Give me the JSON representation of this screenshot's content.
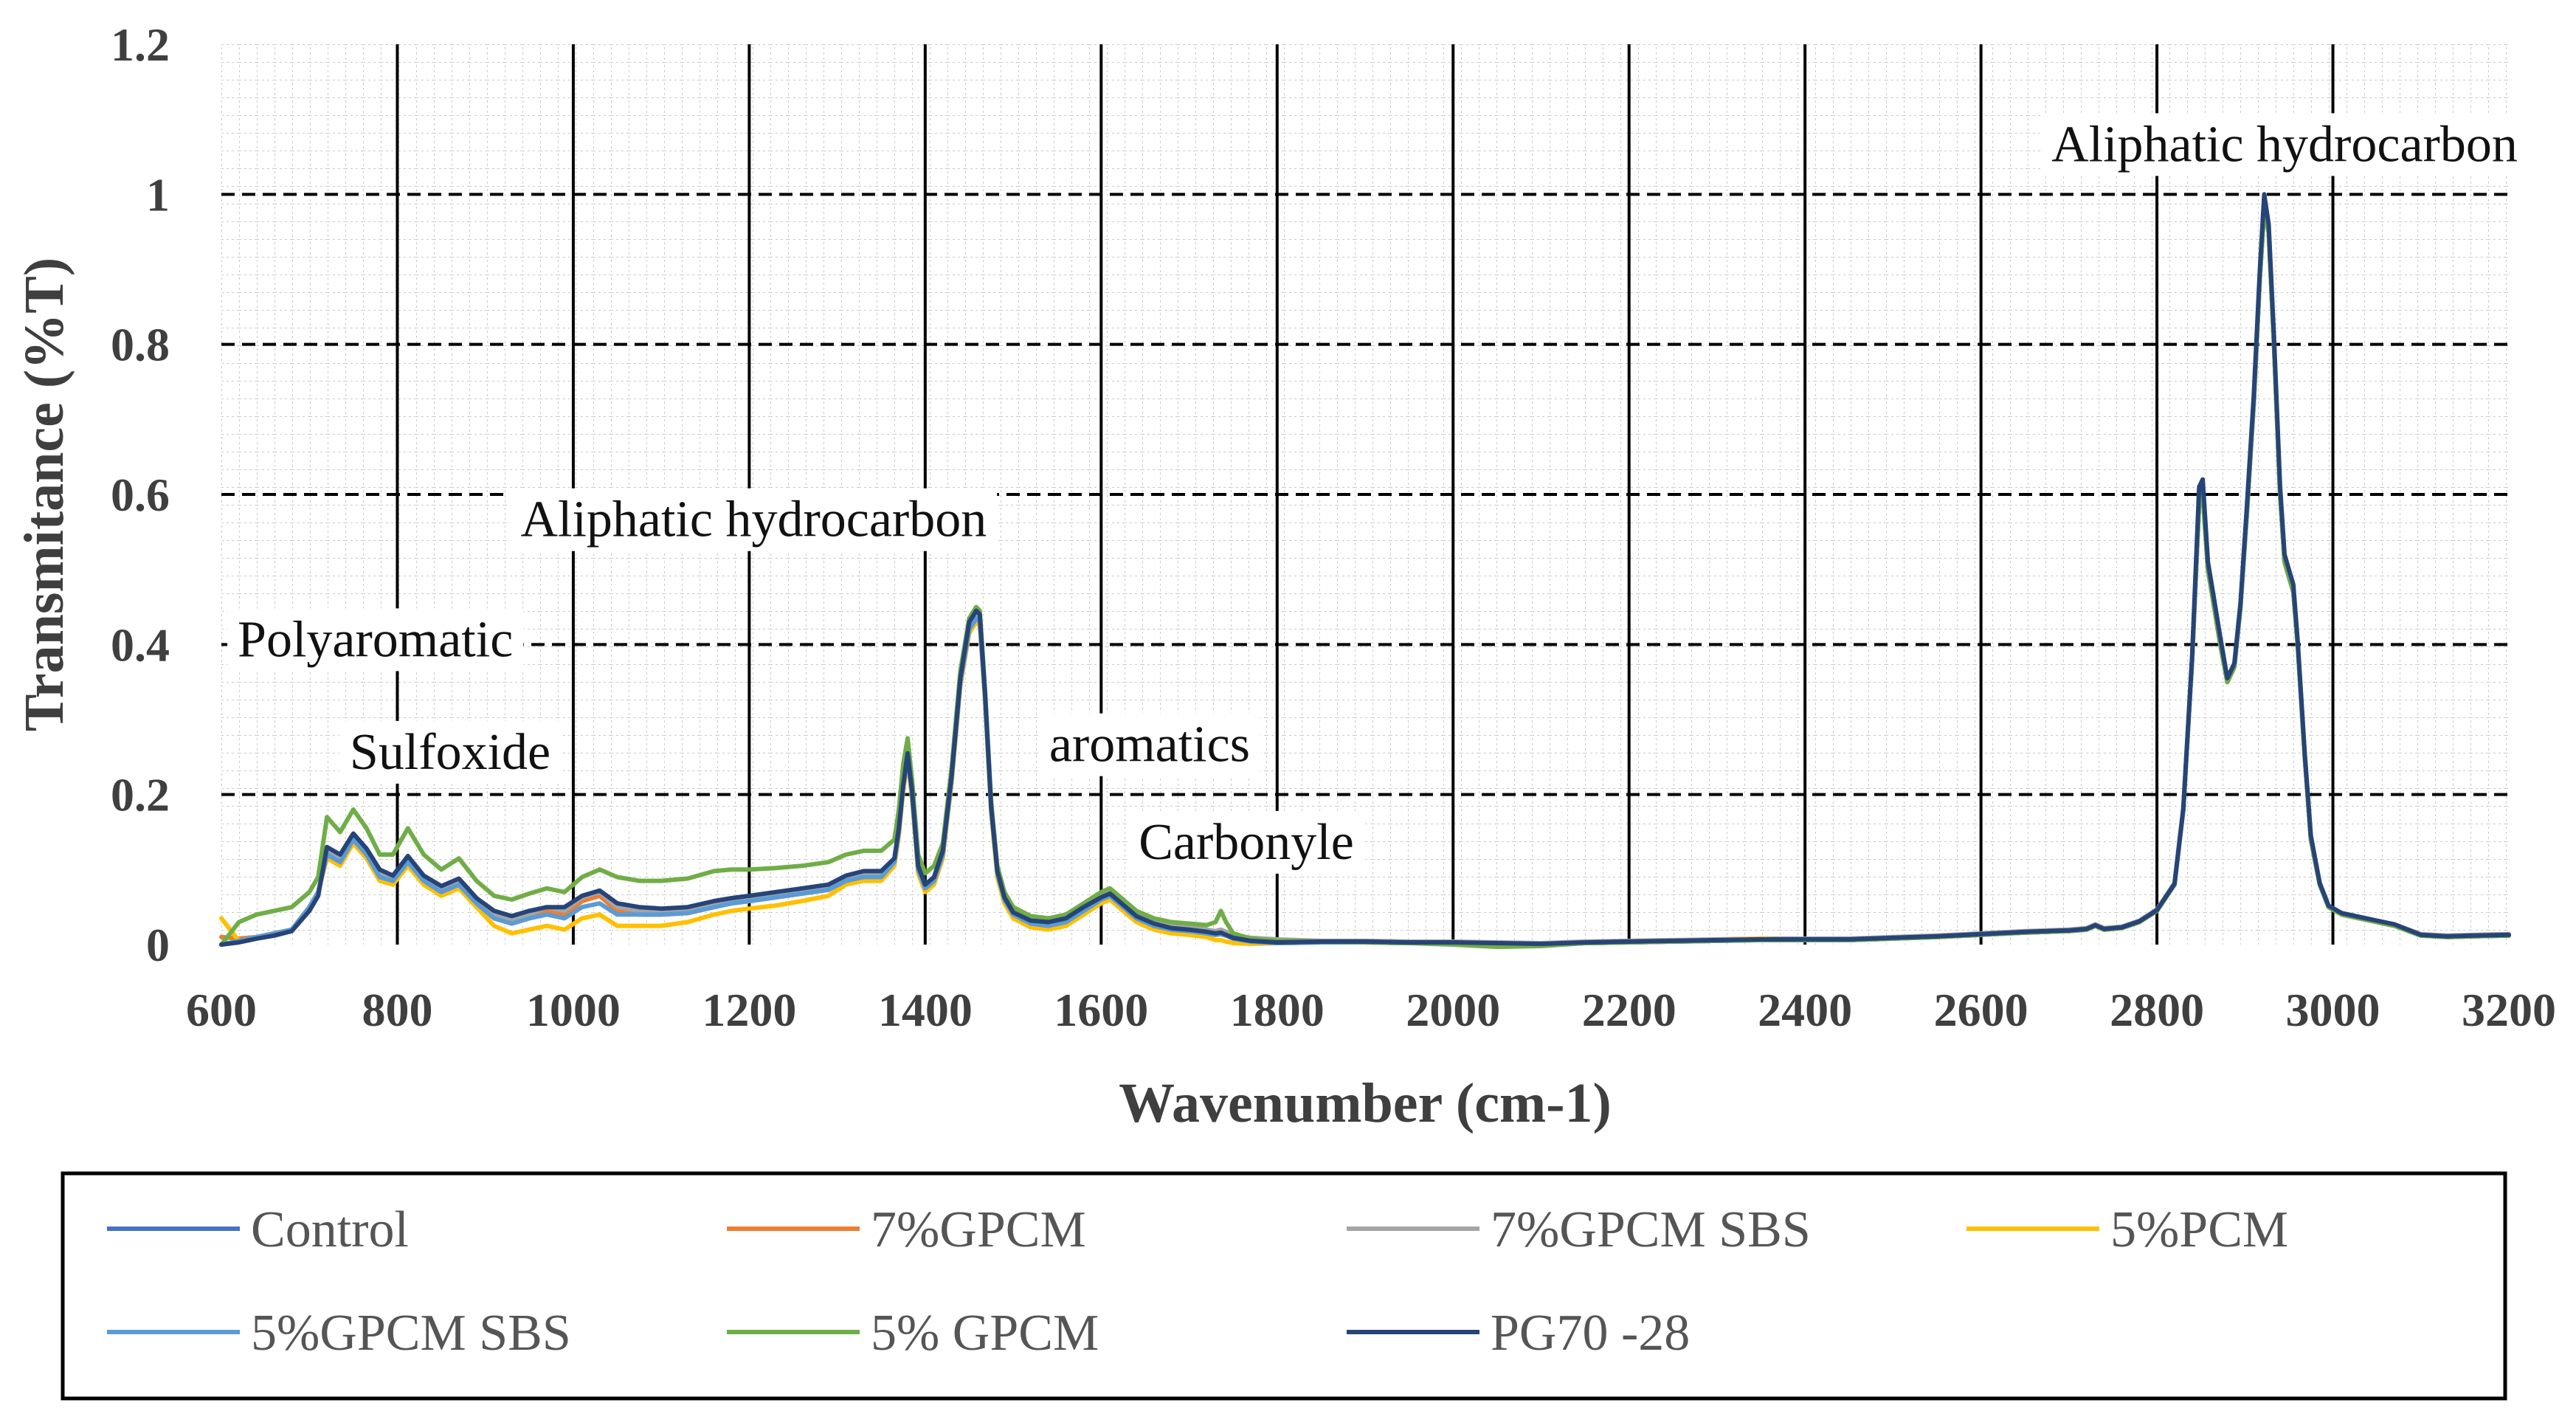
{
  "chart_data": {
    "type": "line",
    "title": "",
    "xlabel": "Wavenumber (cm-1)",
    "ylabel": "Transmitance (%T)",
    "xlim": [
      600,
      3200
    ],
    "ylim": [
      0,
      1.2
    ],
    "x_ticks": [
      600,
      800,
      1000,
      1200,
      1400,
      1600,
      1800,
      2000,
      2200,
      2400,
      2600,
      2800,
      3000,
      3200
    ],
    "y_ticks": [
      0,
      0.2,
      0.4,
      0.6,
      0.8,
      1,
      1.2
    ],
    "y_tick_labels": [
      "0",
      "0.2",
      "0.4",
      "0.6",
      "0.8",
      "1",
      "1.2"
    ],
    "grid": true,
    "legend_position": "bottom",
    "annotations": [
      {
        "text": "Polyaromatic",
        "x": 775,
        "y": 0.4
      },
      {
        "text": "Sulfoxide",
        "x": 860,
        "y": 0.25
      },
      {
        "text": "Aliphatic hydrocarbon",
        "x": 1205,
        "y": 0.56
      },
      {
        "text": "aromatics",
        "x": 1655,
        "y": 0.26
      },
      {
        "text": "Carbonyle",
        "x": 1765,
        "y": 0.13
      },
      {
        "text": "Aliphatic hydrocarbon",
        "x": 2945,
        "y": 1.06
      }
    ],
    "x": [
      600,
      620,
      640,
      660,
      680,
      700,
      710,
      720,
      735,
      750,
      765,
      780,
      795,
      812,
      830,
      850,
      870,
      890,
      910,
      930,
      950,
      970,
      990,
      1010,
      1030,
      1050,
      1075,
      1100,
      1130,
      1160,
      1180,
      1200,
      1230,
      1260,
      1290,
      1310,
      1330,
      1350,
      1365,
      1370,
      1375,
      1380,
      1385,
      1392,
      1400,
      1410,
      1420,
      1430,
      1440,
      1450,
      1458,
      1462,
      1468,
      1475,
      1482,
      1490,
      1500,
      1520,
      1540,
      1560,
      1580,
      1600,
      1610,
      1620,
      1640,
      1660,
      1680,
      1700,
      1720,
      1730,
      1736,
      1742,
      1750,
      1770,
      1800,
      1850,
      1900,
      1950,
      2000,
      2050,
      2100,
      2150,
      2200,
      2250,
      2300,
      2350,
      2400,
      2450,
      2500,
      2550,
      2600,
      2650,
      2700,
      2720,
      2730,
      2740,
      2760,
      2780,
      2800,
      2820,
      2830,
      2840,
      2848,
      2852,
      2858,
      2865,
      2872,
      2880,
      2888,
      2895,
      2902,
      2910,
      2917,
      2922,
      2927,
      2933,
      2940,
      2945,
      2950,
      2955,
      2960,
      2968,
      2975,
      2985,
      2995,
      3010,
      3030,
      3050,
      3070,
      3100,
      3130,
      3160,
      3200
    ],
    "series": [
      {
        "name": "Control",
        "color": "#4472C4",
        "values": [
          0.0,
          0.005,
          0.01,
          0.015,
          0.02,
          0.05,
          0.07,
          0.12,
          0.11,
          0.14,
          0.12,
          0.09,
          0.085,
          0.11,
          0.085,
          0.07,
          0.08,
          0.055,
          0.035,
          0.028,
          0.035,
          0.045,
          0.04,
          0.058,
          0.065,
          0.045,
          0.04,
          0.04,
          0.042,
          0.05,
          0.055,
          0.058,
          0.063,
          0.068,
          0.073,
          0.085,
          0.09,
          0.09,
          0.11,
          0.15,
          0.21,
          0.25,
          0.2,
          0.1,
          0.075,
          0.085,
          0.12,
          0.22,
          0.35,
          0.42,
          0.435,
          0.43,
          0.33,
          0.18,
          0.095,
          0.06,
          0.04,
          0.028,
          0.025,
          0.03,
          0.045,
          0.06,
          0.065,
          0.055,
          0.035,
          0.025,
          0.02,
          0.018,
          0.015,
          0.013,
          0.014,
          0.012,
          0.008,
          0.004,
          0.002,
          0.003,
          0.003,
          0.002,
          0.002,
          0.001,
          0.0,
          0.002,
          0.003,
          0.004,
          0.005,
          0.006,
          0.006,
          0.006,
          0.008,
          0.01,
          0.013,
          0.016,
          0.018,
          0.02,
          0.025,
          0.02,
          0.022,
          0.03,
          0.045,
          0.08,
          0.18,
          0.38,
          0.59,
          0.6,
          0.5,
          0.45,
          0.4,
          0.35,
          0.37,
          0.45,
          0.57,
          0.72,
          0.89,
          0.98,
          0.95,
          0.8,
          0.6,
          0.51,
          0.49,
          0.47,
          0.4,
          0.25,
          0.14,
          0.08,
          0.05,
          0.04,
          0.035,
          0.03,
          0.025,
          0.012,
          0.01,
          0.011,
          0.012
        ]
      },
      {
        "name": "7%GPCM",
        "color": "#ED7D31",
        "values": [
          0.01,
          0.008,
          0.01,
          0.015,
          0.02,
          0.05,
          0.07,
          0.12,
          0.11,
          0.14,
          0.12,
          0.09,
          0.085,
          0.11,
          0.085,
          0.07,
          0.08,
          0.055,
          0.035,
          0.028,
          0.035,
          0.045,
          0.04,
          0.058,
          0.065,
          0.045,
          0.04,
          0.04,
          0.042,
          0.05,
          0.055,
          0.058,
          0.063,
          0.068,
          0.073,
          0.085,
          0.09,
          0.09,
          0.11,
          0.15,
          0.21,
          0.25,
          0.2,
          0.1,
          0.075,
          0.085,
          0.12,
          0.22,
          0.35,
          0.42,
          0.435,
          0.43,
          0.33,
          0.18,
          0.095,
          0.06,
          0.04,
          0.028,
          0.025,
          0.03,
          0.045,
          0.06,
          0.065,
          0.055,
          0.035,
          0.025,
          0.02,
          0.018,
          0.015,
          0.013,
          0.014,
          0.012,
          0.008,
          0.004,
          0.002,
          0.003,
          0.003,
          0.002,
          0.002,
          0.001,
          0.0,
          0.002,
          0.003,
          0.004,
          0.005,
          0.006,
          0.006,
          0.006,
          0.008,
          0.01,
          0.013,
          0.016,
          0.018,
          0.02,
          0.025,
          0.02,
          0.022,
          0.03,
          0.045,
          0.08,
          0.18,
          0.38,
          0.59,
          0.6,
          0.5,
          0.45,
          0.4,
          0.35,
          0.37,
          0.45,
          0.57,
          0.72,
          0.89,
          0.98,
          0.95,
          0.8,
          0.6,
          0.51,
          0.49,
          0.47,
          0.4,
          0.25,
          0.14,
          0.08,
          0.05,
          0.04,
          0.035,
          0.03,
          0.025,
          0.012,
          0.01,
          0.011,
          0.012
        ]
      },
      {
        "name": "7%GPCM SBS",
        "color": "#A5A5A5",
        "values": [
          0.0,
          0.005,
          0.01,
          0.015,
          0.02,
          0.05,
          0.07,
          0.125,
          0.115,
          0.145,
          0.125,
          0.095,
          0.09,
          0.115,
          0.09,
          0.075,
          0.085,
          0.06,
          0.04,
          0.033,
          0.04,
          0.05,
          0.045,
          0.063,
          0.07,
          0.05,
          0.045,
          0.045,
          0.047,
          0.055,
          0.06,
          0.063,
          0.068,
          0.073,
          0.078,
          0.09,
          0.095,
          0.095,
          0.115,
          0.155,
          0.215,
          0.255,
          0.205,
          0.105,
          0.08,
          0.09,
          0.125,
          0.225,
          0.355,
          0.425,
          0.44,
          0.435,
          0.335,
          0.185,
          0.1,
          0.065,
          0.045,
          0.033,
          0.03,
          0.035,
          0.05,
          0.065,
          0.07,
          0.06,
          0.04,
          0.03,
          0.025,
          0.023,
          0.02,
          0.018,
          0.02,
          0.017,
          0.013,
          0.009,
          0.007,
          0.005,
          0.005,
          0.004,
          0.004,
          0.003,
          0.002,
          0.004,
          0.005,
          0.006,
          0.007,
          0.008,
          0.008,
          0.008,
          0.01,
          0.012,
          0.015,
          0.018,
          0.02,
          0.022,
          0.027,
          0.022,
          0.024,
          0.032,
          0.047,
          0.082,
          0.182,
          0.382,
          0.592,
          0.602,
          0.502,
          0.452,
          0.402,
          0.352,
          0.372,
          0.452,
          0.572,
          0.722,
          0.892,
          0.982,
          0.952,
          0.802,
          0.602,
          0.512,
          0.492,
          0.472,
          0.402,
          0.252,
          0.142,
          0.082,
          0.052,
          0.042,
          0.037,
          0.032,
          0.027,
          0.014,
          0.012,
          0.013,
          0.014
        ]
      },
      {
        "name": "5%PCM",
        "color": "#FFC000",
        "values": [
          0.035,
          0.005,
          0.01,
          0.015,
          0.02,
          0.05,
          0.07,
          0.115,
          0.105,
          0.135,
          0.115,
          0.085,
          0.08,
          0.105,
          0.08,
          0.065,
          0.075,
          0.05,
          0.025,
          0.015,
          0.02,
          0.025,
          0.02,
          0.035,
          0.04,
          0.025,
          0.025,
          0.025,
          0.03,
          0.04,
          0.045,
          0.048,
          0.052,
          0.058,
          0.065,
          0.08,
          0.085,
          0.085,
          0.105,
          0.145,
          0.205,
          0.245,
          0.195,
          0.095,
          0.07,
          0.08,
          0.115,
          0.215,
          0.345,
          0.415,
          0.43,
          0.425,
          0.325,
          0.175,
          0.09,
          0.055,
          0.035,
          0.023,
          0.02,
          0.025,
          0.04,
          0.055,
          0.06,
          0.05,
          0.03,
          0.02,
          0.015,
          0.013,
          0.01,
          0.006,
          0.006,
          0.004,
          0.002,
          0.001,
          0.002,
          0.003,
          0.003,
          0.002,
          0.002,
          0.001,
          0.0,
          0.002,
          0.003,
          0.004,
          0.006,
          0.008,
          0.006,
          0.006,
          0.008,
          0.01,
          0.013,
          0.016,
          0.018,
          0.02,
          0.025,
          0.02,
          0.022,
          0.03,
          0.045,
          0.08,
          0.18,
          0.38,
          0.59,
          0.6,
          0.5,
          0.45,
          0.4,
          0.35,
          0.37,
          0.45,
          0.57,
          0.72,
          0.89,
          0.98,
          0.95,
          0.8,
          0.6,
          0.51,
          0.49,
          0.47,
          0.4,
          0.25,
          0.14,
          0.08,
          0.05,
          0.04,
          0.035,
          0.03,
          0.025,
          0.012,
          0.01,
          0.011,
          0.012
        ]
      },
      {
        "name": "5%GPCM SBS",
        "color": "#5B9BD5",
        "values": [
          0.0,
          0.005,
          0.01,
          0.015,
          0.02,
          0.05,
          0.07,
          0.12,
          0.11,
          0.14,
          0.12,
          0.09,
          0.085,
          0.11,
          0.085,
          0.07,
          0.08,
          0.055,
          0.035,
          0.028,
          0.035,
          0.04,
          0.035,
          0.05,
          0.055,
          0.04,
          0.04,
          0.04,
          0.042,
          0.05,
          0.055,
          0.058,
          0.063,
          0.068,
          0.073,
          0.085,
          0.09,
          0.09,
          0.11,
          0.15,
          0.21,
          0.25,
          0.2,
          0.1,
          0.075,
          0.085,
          0.12,
          0.22,
          0.35,
          0.42,
          0.435,
          0.43,
          0.33,
          0.18,
          0.095,
          0.06,
          0.04,
          0.028,
          0.025,
          0.03,
          0.045,
          0.06,
          0.065,
          0.055,
          0.035,
          0.025,
          0.02,
          0.018,
          0.015,
          0.013,
          0.014,
          0.012,
          0.008,
          0.004,
          0.002,
          0.003,
          0.003,
          0.002,
          0.002,
          0.001,
          0.0,
          0.002,
          0.003,
          0.004,
          0.005,
          0.006,
          0.006,
          0.006,
          0.008,
          0.01,
          0.013,
          0.016,
          0.018,
          0.02,
          0.025,
          0.02,
          0.022,
          0.03,
          0.045,
          0.08,
          0.18,
          0.38,
          0.59,
          0.6,
          0.5,
          0.45,
          0.4,
          0.35,
          0.37,
          0.45,
          0.57,
          0.72,
          0.89,
          0.98,
          0.95,
          0.8,
          0.6,
          0.51,
          0.49,
          0.47,
          0.4,
          0.25,
          0.14,
          0.08,
          0.05,
          0.04,
          0.035,
          0.03,
          0.025,
          0.012,
          0.01,
          0.011,
          0.012
        ]
      },
      {
        "name": "5% GPCM",
        "color": "#70AD47",
        "values": [
          0.0,
          0.03,
          0.04,
          0.045,
          0.05,
          0.07,
          0.09,
          0.17,
          0.15,
          0.18,
          0.155,
          0.12,
          0.12,
          0.155,
          0.12,
          0.1,
          0.115,
          0.085,
          0.065,
          0.06,
          0.068,
          0.075,
          0.07,
          0.09,
          0.1,
          0.09,
          0.085,
          0.085,
          0.088,
          0.098,
          0.1,
          0.1,
          0.102,
          0.105,
          0.11,
          0.12,
          0.125,
          0.125,
          0.14,
          0.18,
          0.24,
          0.275,
          0.22,
          0.12,
          0.095,
          0.105,
          0.135,
          0.235,
          0.365,
          0.435,
          0.45,
          0.445,
          0.34,
          0.19,
          0.105,
          0.07,
          0.05,
          0.038,
          0.035,
          0.04,
          0.055,
          0.07,
          0.075,
          0.065,
          0.045,
          0.035,
          0.03,
          0.028,
          0.026,
          0.03,
          0.045,
          0.03,
          0.015,
          0.008,
          0.005,
          0.004,
          0.003,
          0.002,
          0.0,
          -0.003,
          -0.002,
          0.002,
          0.003,
          0.004,
          0.005,
          0.006,
          0.006,
          0.006,
          0.008,
          0.01,
          0.013,
          0.016,
          0.018,
          0.02,
          0.025,
          0.02,
          0.022,
          0.03,
          0.045,
          0.08,
          0.18,
          0.38,
          0.59,
          0.6,
          0.5,
          0.45,
          0.4,
          0.35,
          0.37,
          0.45,
          0.57,
          0.72,
          0.89,
          0.98,
          0.95,
          0.8,
          0.6,
          0.51,
          0.49,
          0.47,
          0.4,
          0.25,
          0.14,
          0.08,
          0.05,
          0.04,
          0.035,
          0.03,
          0.025,
          0.012,
          0.01,
          0.011,
          0.012
        ]
      },
      {
        "name": "PG70 -28",
        "color": "#264478",
        "values": [
          0.0,
          0.003,
          0.008,
          0.012,
          0.018,
          0.045,
          0.065,
          0.13,
          0.12,
          0.148,
          0.128,
          0.1,
          0.092,
          0.118,
          0.092,
          0.078,
          0.088,
          0.062,
          0.045,
          0.038,
          0.045,
          0.05,
          0.05,
          0.065,
          0.072,
          0.055,
          0.05,
          0.048,
          0.05,
          0.058,
          0.062,
          0.065,
          0.07,
          0.075,
          0.08,
          0.092,
          0.098,
          0.098,
          0.115,
          0.155,
          0.212,
          0.255,
          0.205,
          0.105,
          0.08,
          0.09,
          0.125,
          0.225,
          0.355,
          0.43,
          0.445,
          0.44,
          0.335,
          0.182,
          0.098,
          0.063,
          0.043,
          0.032,
          0.03,
          0.035,
          0.05,
          0.063,
          0.068,
          0.058,
          0.038,
          0.028,
          0.022,
          0.02,
          0.017,
          0.015,
          0.016,
          0.013,
          0.009,
          0.005,
          0.003,
          0.004,
          0.004,
          0.003,
          0.003,
          0.002,
          0.001,
          0.003,
          0.004,
          0.005,
          0.006,
          0.007,
          0.007,
          0.007,
          0.009,
          0.011,
          0.014,
          0.017,
          0.019,
          0.021,
          0.026,
          0.021,
          0.023,
          0.031,
          0.046,
          0.081,
          0.181,
          0.385,
          0.61,
          0.62,
          0.51,
          0.46,
          0.41,
          0.355,
          0.375,
          0.455,
          0.58,
          0.73,
          0.9,
          1.0,
          0.96,
          0.81,
          0.61,
          0.52,
          0.5,
          0.48,
          0.405,
          0.255,
          0.145,
          0.082,
          0.052,
          0.042,
          0.037,
          0.032,
          0.027,
          0.013,
          0.011,
          0.012,
          0.013
        ]
      }
    ]
  }
}
